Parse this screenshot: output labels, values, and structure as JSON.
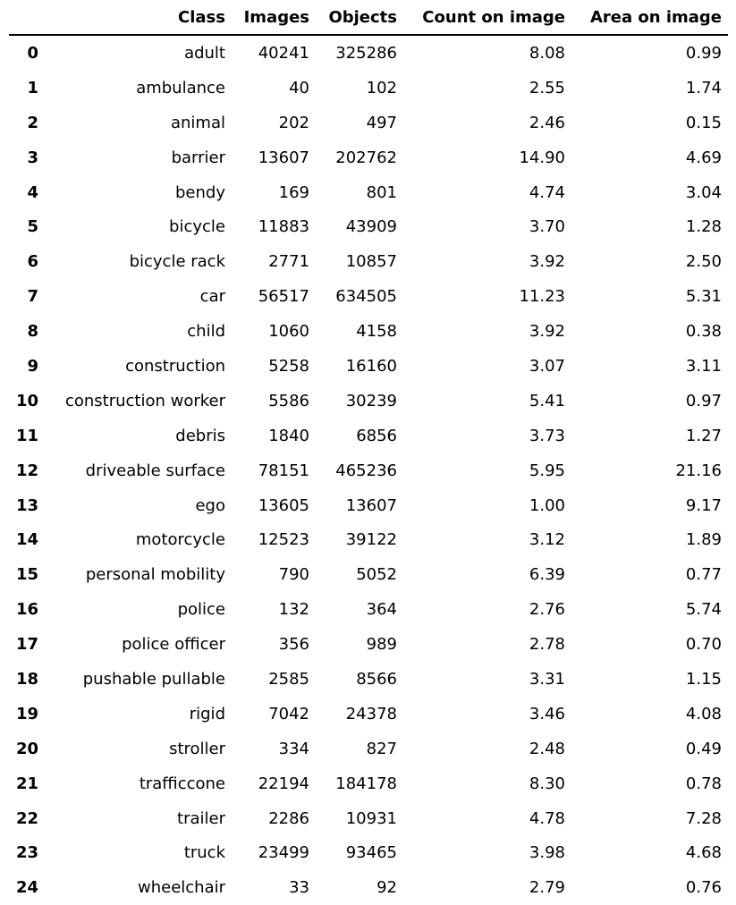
{
  "columns": [
    "",
    "Class",
    "Images",
    "Objects",
    "Count on image",
    "Area on image"
  ],
  "rows": [
    {
      "index": "0",
      "class": "adult",
      "images": "40241",
      "objects": "325286",
      "count": "8.08",
      "area": "0.99"
    },
    {
      "index": "1",
      "class": "ambulance",
      "images": "40",
      "objects": "102",
      "count": "2.55",
      "area": "1.74"
    },
    {
      "index": "2",
      "class": "animal",
      "images": "202",
      "objects": "497",
      "count": "2.46",
      "area": "0.15"
    },
    {
      "index": "3",
      "class": "barrier",
      "images": "13607",
      "objects": "202762",
      "count": "14.90",
      "area": "4.69"
    },
    {
      "index": "4",
      "class": "bendy",
      "images": "169",
      "objects": "801",
      "count": "4.74",
      "area": "3.04"
    },
    {
      "index": "5",
      "class": "bicycle",
      "images": "11883",
      "objects": "43909",
      "count": "3.70",
      "area": "1.28"
    },
    {
      "index": "6",
      "class": "bicycle rack",
      "images": "2771",
      "objects": "10857",
      "count": "3.92",
      "area": "2.50"
    },
    {
      "index": "7",
      "class": "car",
      "images": "56517",
      "objects": "634505",
      "count": "11.23",
      "area": "5.31"
    },
    {
      "index": "8",
      "class": "child",
      "images": "1060",
      "objects": "4158",
      "count": "3.92",
      "area": "0.38"
    },
    {
      "index": "9",
      "class": "construction",
      "images": "5258",
      "objects": "16160",
      "count": "3.07",
      "area": "3.11"
    },
    {
      "index": "10",
      "class": "construction worker",
      "images": "5586",
      "objects": "30239",
      "count": "5.41",
      "area": "0.97"
    },
    {
      "index": "11",
      "class": "debris",
      "images": "1840",
      "objects": "6856",
      "count": "3.73",
      "area": "1.27"
    },
    {
      "index": "12",
      "class": "driveable surface",
      "images": "78151",
      "objects": "465236",
      "count": "5.95",
      "area": "21.16"
    },
    {
      "index": "13",
      "class": "ego",
      "images": "13605",
      "objects": "13607",
      "count": "1.00",
      "area": "9.17"
    },
    {
      "index": "14",
      "class": "motorcycle",
      "images": "12523",
      "objects": "39122",
      "count": "3.12",
      "area": "1.89"
    },
    {
      "index": "15",
      "class": "personal mobility",
      "images": "790",
      "objects": "5052",
      "count": "6.39",
      "area": "0.77"
    },
    {
      "index": "16",
      "class": "police",
      "images": "132",
      "objects": "364",
      "count": "2.76",
      "area": "5.74"
    },
    {
      "index": "17",
      "class": "police officer",
      "images": "356",
      "objects": "989",
      "count": "2.78",
      "area": "0.70"
    },
    {
      "index": "18",
      "class": "pushable pullable",
      "images": "2585",
      "objects": "8566",
      "count": "3.31",
      "area": "1.15"
    },
    {
      "index": "19",
      "class": "rigid",
      "images": "7042",
      "objects": "24378",
      "count": "3.46",
      "area": "4.08"
    },
    {
      "index": "20",
      "class": "stroller",
      "images": "334",
      "objects": "827",
      "count": "2.48",
      "area": "0.49"
    },
    {
      "index": "21",
      "class": "trafficcone",
      "images": "22194",
      "objects": "184178",
      "count": "8.30",
      "area": "0.78"
    },
    {
      "index": "22",
      "class": "trailer",
      "images": "2286",
      "objects": "10931",
      "count": "4.78",
      "area": "7.28"
    },
    {
      "index": "23",
      "class": "truck",
      "images": "23499",
      "objects": "93465",
      "count": "3.98",
      "area": "4.68"
    },
    {
      "index": "24",
      "class": "wheelchair",
      "images": "33",
      "objects": "92",
      "count": "2.79",
      "area": "0.76"
    }
  ]
}
